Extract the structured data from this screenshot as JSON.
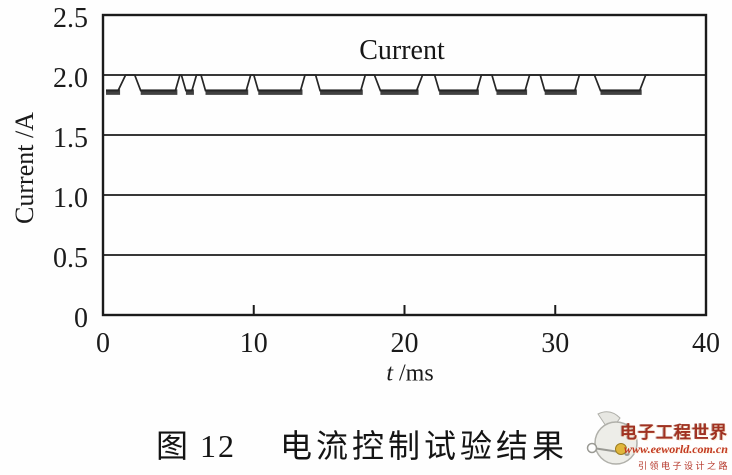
{
  "chart_data": {
    "type": "line",
    "title": "",
    "annotation": "Current",
    "xlabel_variable": "t",
    "xlabel_unit": " /ms",
    "ylabel": "Current /A",
    "xlim": [
      0,
      40
    ],
    "ylim": [
      0,
      2.5
    ],
    "x_tick_values": [
      0,
      10,
      20,
      30,
      40
    ],
    "x_tick_labels": [
      "0",
      "10",
      "20",
      "30",
      "40"
    ],
    "y_tick_values": [
      0,
      0.5,
      1.0,
      1.5,
      2.0,
      2.5
    ],
    "y_tick_labels": [
      "0",
      "0.5",
      "1.0",
      "1.5",
      "2.0",
      "2.5"
    ],
    "grid": "horizontal",
    "gridline_values": [
      0.5,
      1.0,
      1.5,
      2.0
    ],
    "inner_x_ticks": [
      10,
      20,
      30
    ],
    "legend_position": "none",
    "series": [
      {
        "name": "Current",
        "low_level": 1.87,
        "high_level": 2.0,
        "points": [
          [
            0.2,
            1.87
          ],
          [
            1.0,
            1.87
          ],
          [
            1.5,
            2.0
          ],
          [
            2.1,
            2.0
          ],
          [
            2.5,
            1.87
          ],
          [
            4.8,
            1.87
          ],
          [
            5.1,
            2.0
          ],
          [
            5.2,
            2.0
          ],
          [
            5.5,
            1.87
          ],
          [
            5.9,
            1.87
          ],
          [
            6.2,
            2.0
          ],
          [
            6.5,
            2.0
          ],
          [
            6.8,
            1.87
          ],
          [
            9.5,
            1.87
          ],
          [
            9.8,
            2.0
          ],
          [
            10.0,
            2.0
          ],
          [
            10.3,
            1.87
          ],
          [
            13.1,
            1.87
          ],
          [
            13.4,
            2.0
          ],
          [
            14.1,
            2.0
          ],
          [
            14.4,
            1.87
          ],
          [
            17.1,
            1.87
          ],
          [
            17.4,
            2.0
          ],
          [
            18.0,
            2.0
          ],
          [
            18.4,
            1.87
          ],
          [
            20.8,
            1.87
          ],
          [
            21.2,
            2.0
          ],
          [
            22.0,
            2.0
          ],
          [
            22.3,
            1.87
          ],
          [
            24.8,
            1.87
          ],
          [
            25.1,
            2.0
          ],
          [
            25.8,
            2.0
          ],
          [
            26.1,
            1.87
          ],
          [
            28.0,
            1.87
          ],
          [
            28.3,
            2.0
          ],
          [
            29.0,
            2.0
          ],
          [
            29.3,
            1.87
          ],
          [
            31.3,
            1.87
          ],
          [
            31.6,
            2.0
          ],
          [
            32.6,
            2.0
          ],
          [
            33.0,
            1.87
          ],
          [
            35.6,
            1.87
          ],
          [
            36.0,
            2.0
          ],
          [
            36.2,
            2.0
          ]
        ]
      }
    ]
  },
  "caption": {
    "figure_label": "图 12",
    "title": "电流控制试验结果"
  },
  "watermark": {
    "site_name": "电子工程世界",
    "url": "www.eeworld.com.cn",
    "slogan": "引领电子设计之路"
  },
  "colors": {
    "axis": "#1b1b1b",
    "waveform": "#262626",
    "waveform_thick": "#414141",
    "text": "#161616",
    "watermark_red": "#a03222",
    "watermark_url_red": "#c23a22",
    "logo_grey_fill": "#edede8",
    "logo_grey_stroke": "#b0b0aa",
    "logo_yellow": "#e0b63c"
  }
}
